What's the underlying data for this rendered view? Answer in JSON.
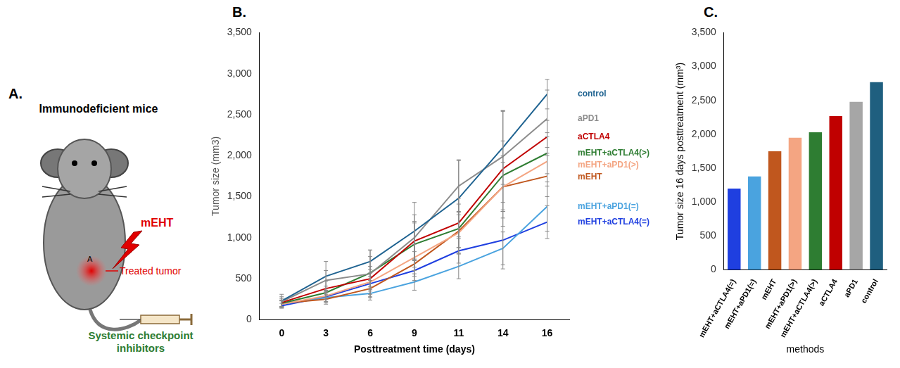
{
  "diagram": {
    "panel_label": "A.",
    "title": "Immunodeficient mice",
    "treatment": "mEHT",
    "site": "A",
    "tumor": "Treated tumor",
    "injection": "Systemic checkpoint inhibitors"
  },
  "chart_data": [
    {
      "panel_label": "B.",
      "type": "line",
      "x_label": "Posttreatment time (days)",
      "y_label": "Tumor size (mm3)",
      "categories": [
        "0",
        "3",
        "6",
        "9",
        "11",
        "14",
        "16"
      ],
      "ylim": [
        0,
        3500
      ],
      "yticks": [
        0,
        500,
        1000,
        1500,
        2000,
        2500,
        3000,
        3500
      ],
      "grid": false,
      "legend": "right",
      "series": [
        {
          "name": "control",
          "color": "#1f6391",
          "values": [
            230,
            530,
            710,
            1080,
            1480,
            2100,
            2750
          ],
          "errors": [
            80,
            180,
            140,
            350,
            470,
            450,
            180
          ]
        },
        {
          "name": "aPD1",
          "color": "#8c8c8c",
          "values": [
            220,
            480,
            560,
            1000,
            1630,
            1990,
            2450
          ],
          "errors": [
            60,
            120,
            290,
            280,
            310,
            560,
            350
          ]
        },
        {
          "name": "aCTLA4",
          "color": "#c00000",
          "values": [
            210,
            380,
            500,
            960,
            1180,
            1840,
            2230
          ],
          "errors": [
            50,
            90,
            150,
            220,
            300,
            700,
            200
          ]
        },
        {
          "name": "mEHT+aCTLA4(>)",
          "color": "#2e7d32",
          "values": [
            200,
            330,
            570,
            920,
            1110,
            1760,
            2030
          ],
          "errors": [
            40,
            80,
            200,
            280,
            300,
            420,
            250
          ]
        },
        {
          "name": "mEHT+aPD1(>)",
          "color": "#f4a582",
          "values": [
            190,
            290,
            460,
            760,
            1060,
            1620,
            1930
          ],
          "errors": [
            40,
            70,
            150,
            160,
            250,
            380,
            300
          ]
        },
        {
          "name": "mEHT",
          "color": "#c0571e",
          "values": [
            200,
            250,
            380,
            680,
            1080,
            1620,
            1750
          ],
          "errors": [
            40,
            60,
            100,
            150,
            200,
            300,
            250
          ]
        },
        {
          "name": "mEHT+aPD1(=)",
          "color": "#4aa3df",
          "values": [
            190,
            270,
            320,
            460,
            650,
            870,
            1380
          ],
          "errors": [
            40,
            60,
            80,
            100,
            150,
            200,
            300
          ]
        },
        {
          "name": "mEHT+aCTLA4(=)",
          "color": "#1f3fe0",
          "values": [
            170,
            280,
            440,
            600,
            840,
            970,
            1190
          ],
          "errors": [
            30,
            60,
            90,
            120,
            150,
            350,
            200
          ]
        }
      ]
    },
    {
      "panel_label": "C.",
      "type": "bar",
      "x_label": "methods",
      "y_label": "Tumor size 16 days posttreatment (mm³)",
      "categories": [
        "mEHT+aCTLA4(=)",
        "mEHT+aPD1(=)",
        "mEHT",
        "mEHT+aPD1(>)",
        "mEHT+aCTLA4(>)",
        "aCTLA4",
        "aPD1",
        "control"
      ],
      "values": [
        1200,
        1380,
        1750,
        1950,
        2030,
        2270,
        2480,
        2770
      ],
      "colors": [
        "#1f3fe0",
        "#4aa3df",
        "#c0571e",
        "#f4a582",
        "#2e7d32",
        "#c00000",
        "#a6a6a6",
        "#1f5f7f"
      ],
      "ylim": [
        0,
        3500
      ],
      "yticks": [
        0,
        500,
        1000,
        1500,
        2000,
        2500,
        3000,
        3500
      ],
      "grid": false,
      "data_labels": false
    }
  ]
}
